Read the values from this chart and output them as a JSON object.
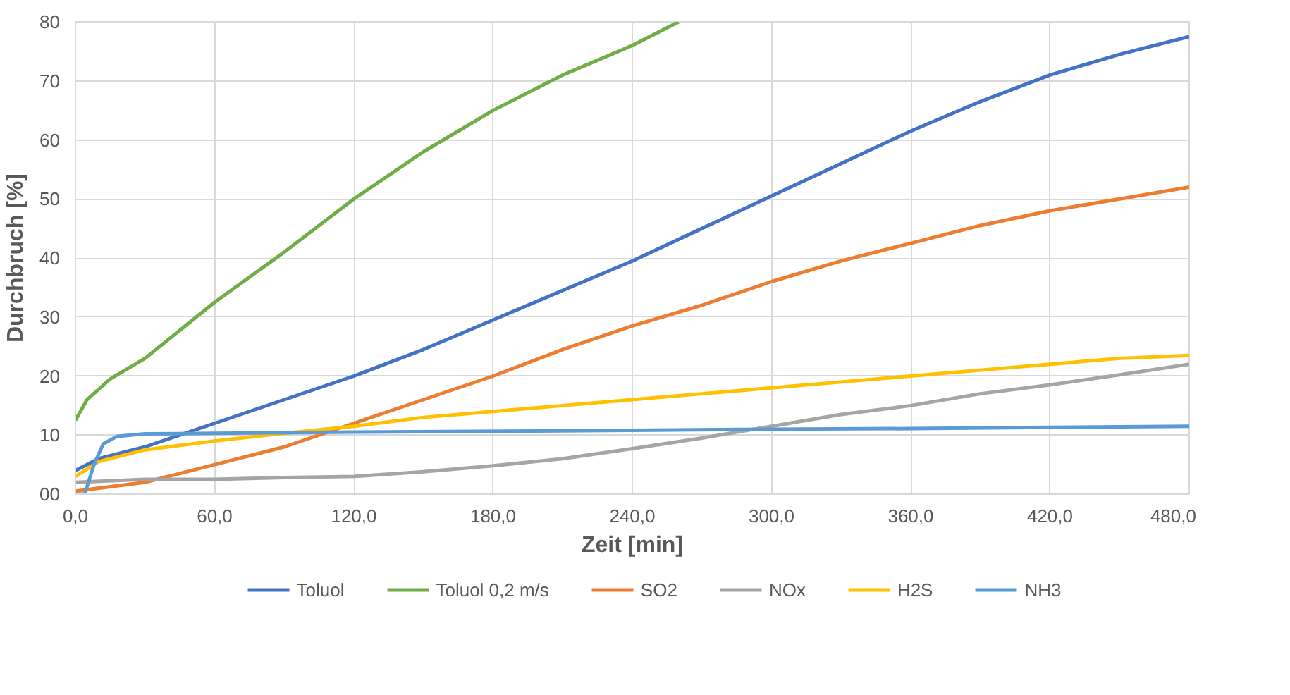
{
  "chart_data": {
    "type": "line",
    "xlabel": "Zeit [min]",
    "ylabel": "Durchbruch [%]",
    "xlim": [
      0,
      480
    ],
    "ylim": [
      0,
      80
    ],
    "xticks": [
      {
        "value": 0,
        "label": "0,0"
      },
      {
        "value": 60,
        "label": "60,0"
      },
      {
        "value": 120,
        "label": "120,0"
      },
      {
        "value": 180,
        "label": "180,0"
      },
      {
        "value": 240,
        "label": "240,0"
      },
      {
        "value": 300,
        "label": "300,0"
      },
      {
        "value": 360,
        "label": "360,0"
      },
      {
        "value": 420,
        "label": "420,0"
      },
      {
        "value": 480,
        "label": "480,0"
      }
    ],
    "yticks": [
      {
        "value": 0,
        "label": "00"
      },
      10,
      20,
      30,
      40,
      50,
      60,
      70,
      80
    ],
    "grid": true,
    "legend": "bottom",
    "marker": "none",
    "line_style": "solid",
    "series": [
      {
        "name": "Toluol",
        "color": "#4472c4",
        "x": [
          0,
          10,
          30,
          60,
          90,
          120,
          150,
          180,
          210,
          240,
          270,
          300,
          330,
          360,
          390,
          420,
          450,
          480
        ],
        "values": [
          4,
          6,
          8,
          12,
          16,
          20,
          24.5,
          29.5,
          34.5,
          39.5,
          45,
          50.5,
          56,
          61.5,
          66.5,
          71,
          74.5,
          77.5
        ]
      },
      {
        "name": "Toluol 0,2 m/s",
        "color": "#70ad47",
        "x": [
          0,
          5,
          15,
          30,
          60,
          90,
          120,
          150,
          180,
          210,
          240,
          260
        ],
        "values": [
          12.5,
          16,
          19.5,
          23,
          32.5,
          41,
          50,
          58,
          65,
          71,
          76,
          80
        ]
      },
      {
        "name": "SO2",
        "color": "#ed7d31",
        "x": [
          0,
          30,
          60,
          90,
          120,
          150,
          180,
          210,
          240,
          270,
          300,
          330,
          360,
          390,
          420,
          450,
          480
        ],
        "values": [
          0.5,
          2,
          5,
          8,
          12,
          16,
          20,
          24.5,
          28.5,
          32,
          36,
          39.5,
          42.5,
          45.5,
          48,
          50,
          52
        ]
      },
      {
        "name": "NOx",
        "color": "#a5a5a5",
        "x": [
          0,
          30,
          60,
          90,
          120,
          150,
          180,
          210,
          240,
          270,
          300,
          330,
          360,
          390,
          420,
          450,
          480
        ],
        "values": [
          2,
          2.5,
          2.5,
          2.8,
          3,
          3.8,
          4.8,
          6,
          7.7,
          9.5,
          11.5,
          13.5,
          15,
          17,
          18.5,
          20.2,
          22
        ]
      },
      {
        "name": "H2S",
        "color": "#ffc000",
        "x": [
          0,
          10,
          30,
          60,
          90,
          120,
          150,
          180,
          210,
          240,
          270,
          300,
          330,
          360,
          390,
          420,
          450,
          480
        ],
        "values": [
          3,
          5.5,
          7.5,
          9,
          10.3,
          11.5,
          13,
          14,
          15,
          16,
          17,
          18,
          19,
          20,
          21,
          22,
          23,
          23.5
        ]
      },
      {
        "name": "NH3",
        "color": "#5b9bd5",
        "x": [
          0,
          4,
          8,
          12,
          18,
          30,
          60,
          120,
          240,
          300,
          360,
          420,
          480
        ],
        "values": [
          0,
          0,
          5,
          8.5,
          9.8,
          10.2,
          10.3,
          10.5,
          10.8,
          11,
          11.1,
          11.3,
          11.5
        ]
      }
    ]
  }
}
